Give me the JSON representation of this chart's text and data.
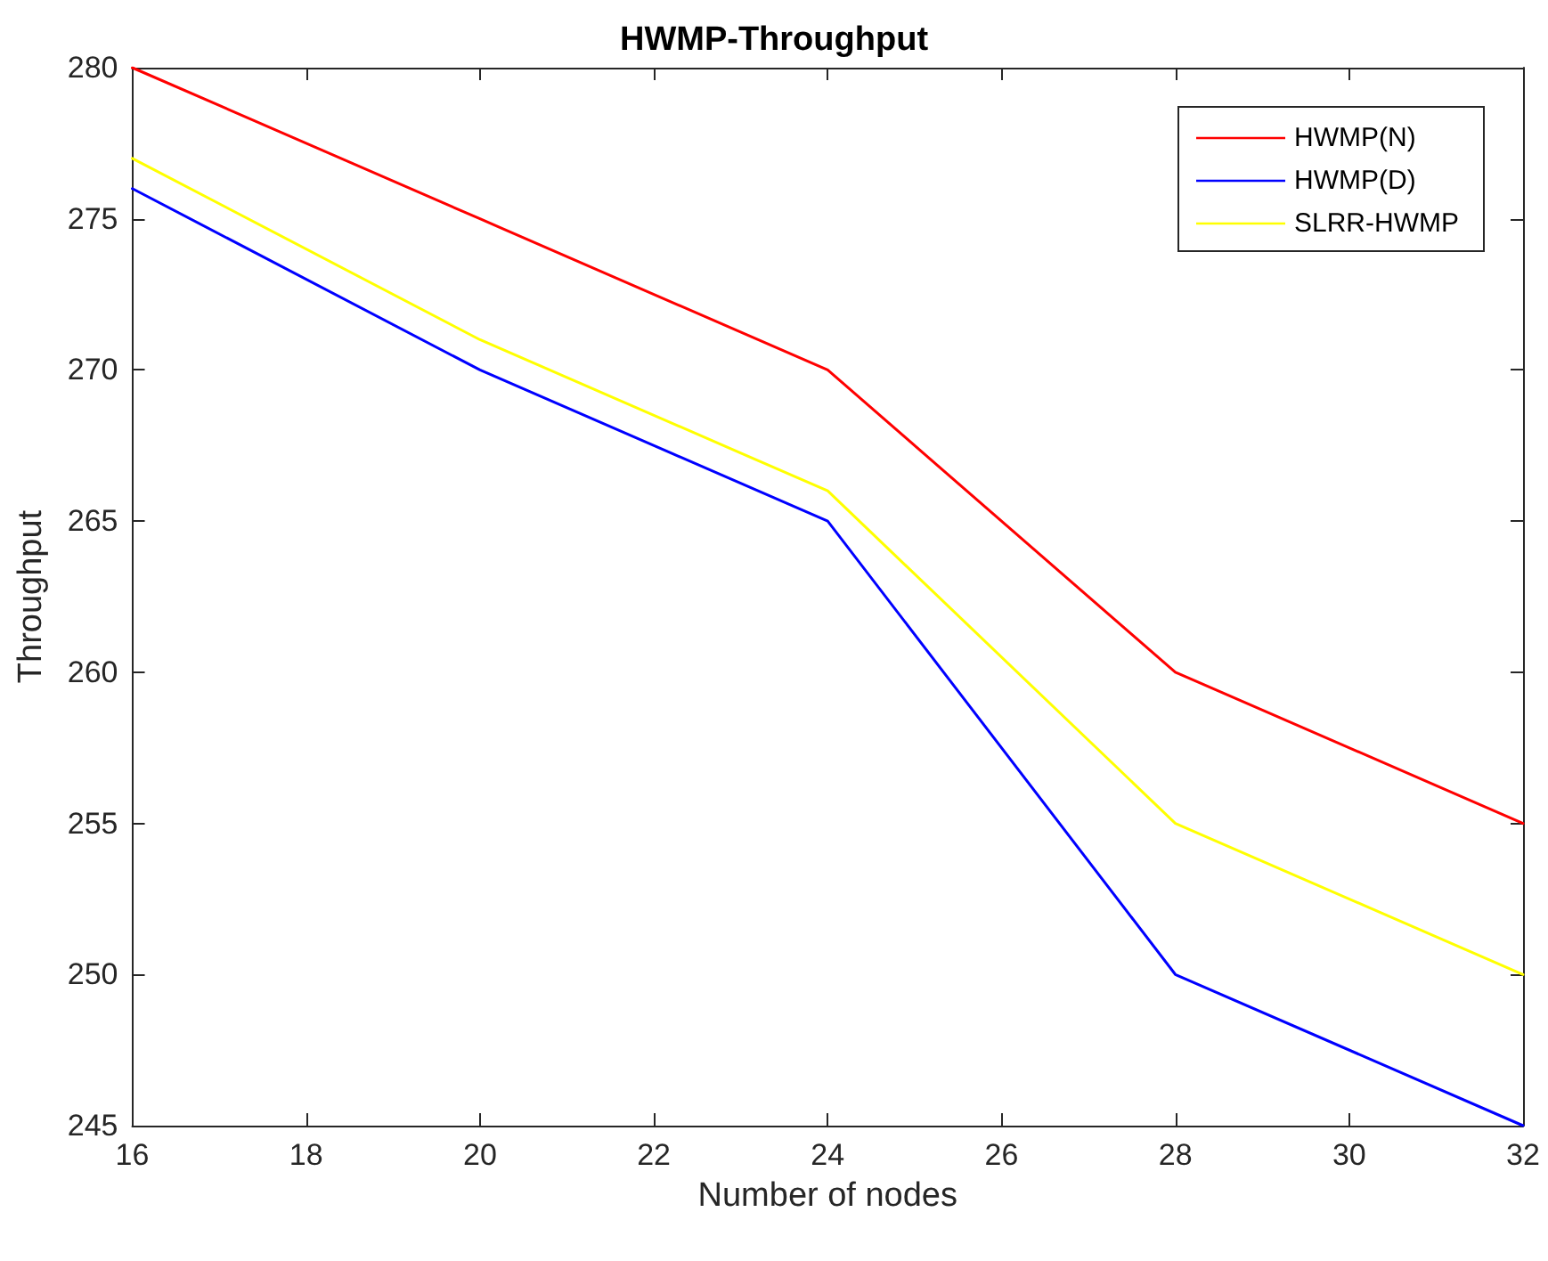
{
  "chart_data": {
    "type": "line",
    "title": "HWMP-Throughput",
    "xlabel": "Number of nodes",
    "ylabel": "Throughput",
    "x": [
      16,
      20,
      24,
      28,
      32
    ],
    "series": [
      {
        "name": "HWMP(N)",
        "color": "#ff0000",
        "values": [
          280,
          275,
          270,
          260,
          255
        ]
      },
      {
        "name": "HWMP(D)",
        "color": "#0000ff",
        "values": [
          276,
          270,
          265,
          250,
          245
        ]
      },
      {
        "name": "SLRR-HWMP",
        "color": "#ffff00",
        "values": [
          277,
          271,
          266,
          255,
          250
        ]
      }
    ],
    "xlim": [
      16,
      32
    ],
    "xticks": [
      16,
      18,
      20,
      22,
      24,
      26,
      28,
      30,
      32
    ],
    "ylim": [
      245,
      280
    ],
    "yticks": [
      245,
      250,
      255,
      260,
      265,
      270,
      275,
      280
    ],
    "legend": "top right",
    "grid": false,
    "marker": "none",
    "line_style": "solid"
  }
}
